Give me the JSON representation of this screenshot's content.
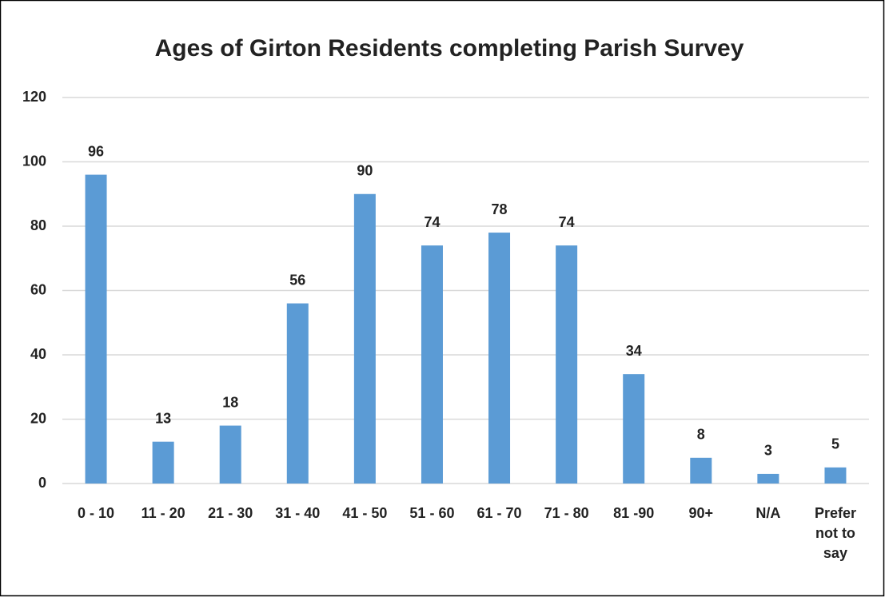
{
  "chart_data": {
    "type": "bar",
    "title": "Ages of Girton Residents completing Parish Survey",
    "categories": [
      "0 - 10",
      "11 - 20",
      "21 - 30",
      "31 - 40",
      "41 - 50",
      "51 - 60",
      "61 - 70",
      "71 - 80",
      "81 -90",
      "90+",
      "N/A",
      "Prefer not to say"
    ],
    "values": [
      96,
      13,
      18,
      56,
      90,
      74,
      78,
      74,
      34,
      8,
      3,
      5
    ],
    "color": "#5b9bd5",
    "ylim": [
      0,
      120
    ],
    "yticks": [
      0,
      20,
      40,
      60,
      80,
      100,
      120
    ],
    "grid": true
  }
}
